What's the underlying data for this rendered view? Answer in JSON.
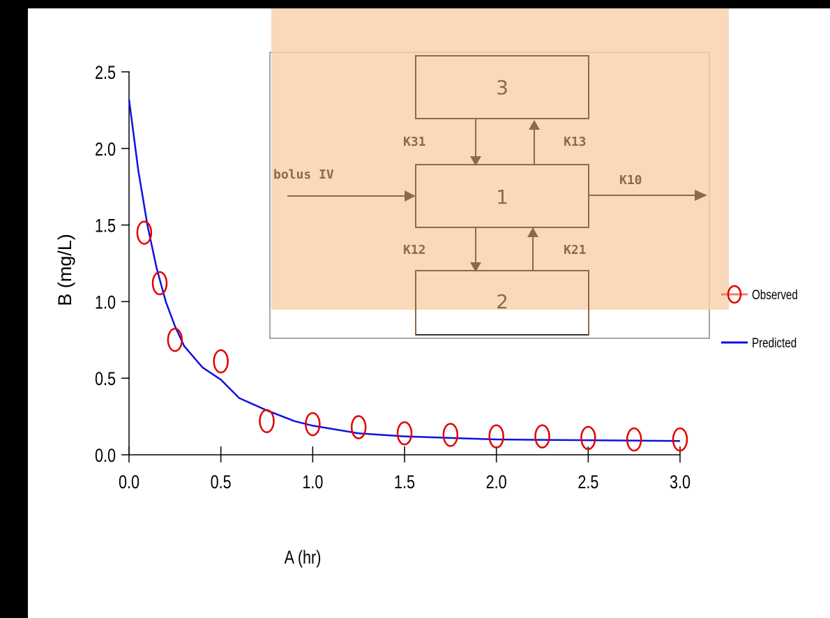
{
  "chart_data": {
    "type": "scatter",
    "title": "",
    "xlabel": "A (hr)",
    "ylabel": "B (mg/L)",
    "xlim": [
      0,
      3
    ],
    "ylim": [
      0,
      2.5
    ],
    "xticks": [
      "0.0",
      "0.5",
      "1.0",
      "1.5",
      "2.0",
      "2.5",
      "3.0"
    ],
    "yticks": [
      "0.0",
      "0.5",
      "1.0",
      "1.5",
      "2.0",
      "2.5"
    ],
    "grid": false,
    "legend_position": "right",
    "series": [
      {
        "name": "Observed",
        "kind": "scatter",
        "color": "#e00000",
        "x": [
          0.083,
          0.167,
          0.25,
          0.5,
          0.75,
          1.0,
          1.25,
          1.5,
          1.75,
          2.0,
          2.25,
          2.5,
          2.75,
          3.0
        ],
        "y": [
          1.45,
          1.12,
          0.75,
          0.61,
          0.22,
          0.2,
          0.18,
          0.14,
          0.13,
          0.12,
          0.12,
          0.11,
          0.1,
          0.1
        ]
      },
      {
        "name": "Predicted",
        "kind": "line",
        "color": "#1010e0",
        "x": [
          0.0,
          0.05,
          0.1,
          0.15,
          0.2,
          0.25,
          0.3,
          0.4,
          0.5,
          0.6,
          0.75,
          0.9,
          1.0,
          1.25,
          1.5,
          1.75,
          2.0,
          2.5,
          3.0
        ],
        "y": [
          2.32,
          1.86,
          1.5,
          1.22,
          1.0,
          0.84,
          0.71,
          0.57,
          0.49,
          0.37,
          0.29,
          0.22,
          0.19,
          0.14,
          0.12,
          0.11,
          0.1,
          0.095,
          0.09
        ]
      }
    ]
  },
  "diagram": {
    "compartments": [
      "3",
      "1",
      "2"
    ],
    "labels": {
      "k31": "K31",
      "k13": "K13",
      "k12": "K12",
      "k21": "K21",
      "k10": "K10",
      "input": "bolus IV"
    },
    "overlay_color": "#f8d1ab",
    "stroke_color": "#8b6a46"
  }
}
